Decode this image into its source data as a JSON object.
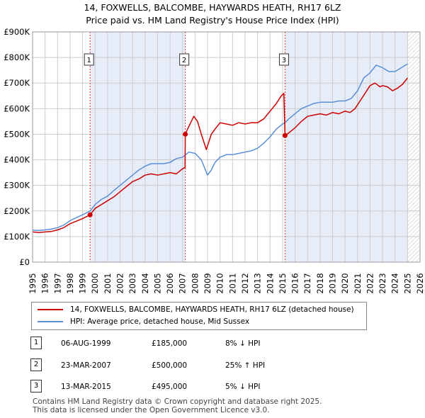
{
  "title": {
    "line1": "14, FOXWELLS, BALCOMBE, HAYWARDS HEATH, RH17 6LZ",
    "line2": "Price paid vs. HM Land Registry's House Price Index (HPI)"
  },
  "colors": {
    "property": "#cc0000",
    "hpi": "#5a8fd6",
    "shade": "#e6ecf8",
    "grid": "#cccccc",
    "marker_line": "#dd3333",
    "future_hatch": "#bbbbbb"
  },
  "chart_data": {
    "type": "line",
    "title": "14, FOXWELLS, BALCOMBE, HAYWARDS HEATH, RH17 6LZ — Price paid vs. HM Land Registry's House Price Index (HPI)",
    "xlabel": "",
    "ylabel": "",
    "xlim": [
      1995,
      2026
    ],
    "ylim": [
      0,
      900000
    ],
    "x_ticks": [
      "1995",
      "1996",
      "1997",
      "1998",
      "1999",
      "2000",
      "2001",
      "2002",
      "2003",
      "2004",
      "2005",
      "2006",
      "2007",
      "2008",
      "2009",
      "2010",
      "2011",
      "2012",
      "2013",
      "2014",
      "2015",
      "2016",
      "2017",
      "2018",
      "2019",
      "2020",
      "2021",
      "2022",
      "2023",
      "2024",
      "2025",
      "2026"
    ],
    "y_ticks": [
      {
        "value": 0,
        "label": "£0"
      },
      {
        "value": 100000,
        "label": "£100K"
      },
      {
        "value": 200000,
        "label": "£200K"
      },
      {
        "value": 300000,
        "label": "£300K"
      },
      {
        "value": 400000,
        "label": "£400K"
      },
      {
        "value": 500000,
        "label": "£500K"
      },
      {
        "value": 600000,
        "label": "£600K"
      },
      {
        "value": 700000,
        "label": "£700K"
      },
      {
        "value": 800000,
        "label": "£800K"
      },
      {
        "value": 900000,
        "label": "£900K"
      }
    ],
    "grid": true,
    "shaded_periods": [
      [
        1999.6,
        2007.22
      ],
      [
        2015.2,
        2025.0
      ]
    ],
    "hatched_future_from": 2025.0,
    "series": [
      {
        "name": "property",
        "label": "14, FOXWELLS, BALCOMBE, HAYWARDS HEATH, RH17 6LZ (detached house)",
        "x": [
          1995.0,
          1995.5,
          1996.0,
          1996.5,
          1997.0,
          1997.5,
          1998.0,
          1998.5,
          1999.0,
          1999.4,
          1999.6,
          2000.0,
          2000.5,
          2001.0,
          2001.5,
          2002.0,
          2002.5,
          2003.0,
          2003.5,
          2004.0,
          2004.5,
          2005.0,
          2005.5,
          2006.0,
          2006.5,
          2007.0,
          2007.2,
          2007.22,
          2007.4,
          2007.6,
          2007.9,
          2008.2,
          2008.5,
          2008.9,
          2009.1,
          2009.3,
          2009.6,
          2010.0,
          2010.5,
          2011.0,
          2011.5,
          2012.0,
          2012.5,
          2013.0,
          2013.5,
          2014.0,
          2014.5,
          2014.9,
          2015.1,
          2015.2,
          2015.5,
          2016.0,
          2016.5,
          2017.0,
          2017.5,
          2018.0,
          2018.5,
          2019.0,
          2019.5,
          2020.0,
          2020.4,
          2020.8,
          2021.2,
          2021.6,
          2022.0,
          2022.4,
          2022.8,
          2023.0,
          2023.4,
          2023.8,
          2024.2,
          2024.6,
          2025.0
        ],
        "values": [
          118000,
          116000,
          118000,
          120000,
          126000,
          135000,
          150000,
          160000,
          170000,
          180000,
          185000,
          210000,
          225000,
          240000,
          255000,
          275000,
          295000,
          315000,
          325000,
          340000,
          345000,
          340000,
          345000,
          350000,
          345000,
          365000,
          370000,
          500000,
          520000,
          540000,
          570000,
          550000,
          500000,
          440000,
          470000,
          500000,
          520000,
          545000,
          540000,
          535000,
          545000,
          540000,
          545000,
          545000,
          560000,
          590000,
          620000,
          650000,
          660000,
          495000,
          505000,
          525000,
          550000,
          570000,
          575000,
          580000,
          575000,
          585000,
          580000,
          590000,
          585000,
          600000,
          630000,
          660000,
          690000,
          700000,
          685000,
          690000,
          685000,
          670000,
          680000,
          695000,
          720000
        ]
      },
      {
        "name": "hpi",
        "label": "HPI: Average price, detached house, Mid Sussex",
        "x": [
          1995.0,
          1995.5,
          1996.0,
          1996.5,
          1997.0,
          1997.5,
          1998.0,
          1998.5,
          1999.0,
          1999.6,
          2000.0,
          2000.5,
          2001.0,
          2001.5,
          2002.0,
          2002.5,
          2003.0,
          2003.5,
          2004.0,
          2004.5,
          2005.0,
          2005.5,
          2006.0,
          2006.5,
          2007.0,
          2007.5,
          2008.0,
          2008.5,
          2009.0,
          2009.3,
          2009.6,
          2010.0,
          2010.5,
          2011.0,
          2011.5,
          2012.0,
          2012.5,
          2013.0,
          2013.5,
          2014.0,
          2014.5,
          2015.0,
          2015.2,
          2015.5,
          2016.0,
          2016.5,
          2017.0,
          2017.5,
          2018.0,
          2018.5,
          2019.0,
          2019.5,
          2020.0,
          2020.5,
          2021.0,
          2021.5,
          2022.0,
          2022.5,
          2023.0,
          2023.5,
          2024.0,
          2024.5,
          2025.0
        ],
        "values": [
          125000,
          124000,
          126000,
          129000,
          135000,
          145000,
          162000,
          174000,
          185000,
          200000,
          225000,
          245000,
          258000,
          280000,
          300000,
          320000,
          340000,
          360000,
          375000,
          385000,
          385000,
          385000,
          390000,
          405000,
          410000,
          430000,
          425000,
          400000,
          340000,
          360000,
          390000,
          410000,
          420000,
          420000,
          425000,
          430000,
          435000,
          445000,
          465000,
          490000,
          520000,
          540000,
          545000,
          560000,
          580000,
          600000,
          610000,
          620000,
          625000,
          625000,
          625000,
          630000,
          630000,
          640000,
          670000,
          720000,
          740000,
          770000,
          760000,
          745000,
          745000,
          760000,
          775000
        ]
      }
    ],
    "sales": [
      {
        "num": "1",
        "x": 1999.6,
        "value": 185000,
        "date": "06-AUG-1999",
        "price": "£185,000",
        "hpi": "8% ↓ HPI"
      },
      {
        "num": "2",
        "x": 2007.22,
        "value": 500000,
        "date": "23-MAR-2007",
        "price": "£500,000",
        "hpi": "25% ↑ HPI"
      },
      {
        "num": "3",
        "x": 2015.2,
        "value": 495000,
        "date": "13-MAR-2015",
        "price": "£495,000",
        "hpi": "5% ↓ HPI"
      }
    ]
  },
  "legend": {
    "property_label": "14, FOXWELLS, BALCOMBE, HAYWARDS HEATH, RH17 6LZ (detached house)",
    "hpi_label": "HPI: Average price, detached house, Mid Sussex"
  },
  "footer": {
    "line1": "Contains HM Land Registry data © Crown copyright and database right 2025.",
    "line2": "This data is licensed under the Open Government Licence v3.0."
  }
}
